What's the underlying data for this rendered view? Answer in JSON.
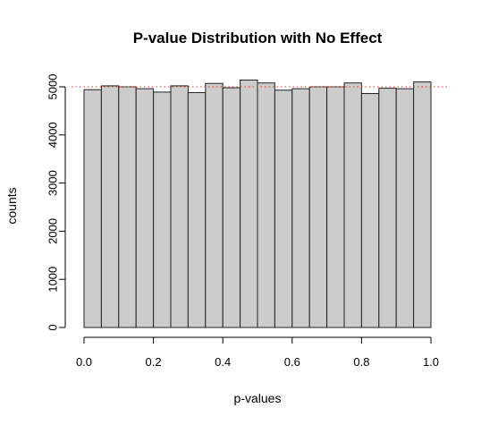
{
  "chart_data": {
    "type": "bar",
    "title": "P-value Distribution with No Effect",
    "xlabel": "p-values",
    "ylabel": "counts",
    "bin_edges": [
      0.0,
      0.05,
      0.1,
      0.15,
      0.2,
      0.25,
      0.3,
      0.35,
      0.4,
      0.45,
      0.5,
      0.55,
      0.6,
      0.65,
      0.7,
      0.75,
      0.8,
      0.85,
      0.9,
      0.95,
      1.0
    ],
    "values": [
      4940,
      5020,
      5000,
      4960,
      4890,
      5020,
      4880,
      5070,
      4980,
      5140,
      5080,
      4930,
      4960,
      5000,
      5000,
      5080,
      4860,
      4970,
      4960,
      5100
    ],
    "xlim": [
      0.0,
      1.0
    ],
    "ylim": [
      0,
      5200
    ],
    "x_ticks": [
      0.0,
      0.2,
      0.4,
      0.6,
      0.8,
      1.0
    ],
    "x_tick_labels": [
      "0.0",
      "0.2",
      "0.4",
      "0.6",
      "0.8",
      "1.0"
    ],
    "y_ticks": [
      0,
      1000,
      2000,
      3000,
      4000,
      5000
    ],
    "y_tick_labels": [
      "0",
      "1000",
      "2000",
      "3000",
      "4000",
      "5000"
    ],
    "reference_line": {
      "y": 5000,
      "style": "dotted",
      "color": "#e03030"
    },
    "bar_color": "#cccccc",
    "grid": false,
    "legend": "none"
  }
}
